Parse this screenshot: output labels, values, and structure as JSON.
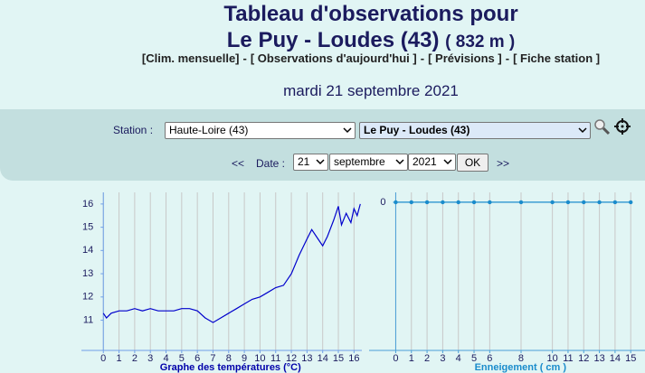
{
  "header": {
    "title": "Tableau d'observations pour",
    "station": "Le Puy - Loudes (43)",
    "altitude": "( 832 m )"
  },
  "nav": {
    "items": [
      "[Clim. mensuelle]",
      "[ Observations d'aujourd'hui ]",
      "[ Prévisions ]",
      "[ Fiche station ]"
    ],
    "separator": "-"
  },
  "date": "mardi 21 septembre 2021",
  "form": {
    "station_label": "Station :",
    "department": "Haute-Loire (43)",
    "station": "Le Puy - Loudes (43)",
    "prev": "<<",
    "date_label": "Date :",
    "day": "21",
    "month": "septembre",
    "year": "2021",
    "ok": "OK",
    "next": ">>"
  },
  "chart_data": [
    {
      "type": "line",
      "x_label": "Graphe des températures (°C)",
      "x": [
        0,
        0.2,
        0.5,
        1,
        1.5,
        2,
        2.5,
        3,
        3.5,
        4,
        4.5,
        5,
        5.5,
        6,
        6.5,
        7,
        7.5,
        8,
        8.5,
        9,
        9.5,
        10,
        10.5,
        11,
        11.5,
        12,
        12.5,
        13,
        13.3,
        13.7,
        14,
        14.3,
        14.7,
        15,
        15.2,
        15.5,
        15.8,
        16,
        16.2,
        16.4
      ],
      "values": [
        11.3,
        11.1,
        11.3,
        11.4,
        11.4,
        11.5,
        11.4,
        11.5,
        11.4,
        11.4,
        11.4,
        11.5,
        11.5,
        11.4,
        11.1,
        10.9,
        11.1,
        11.3,
        11.5,
        11.7,
        11.9,
        12.0,
        12.2,
        12.4,
        12.5,
        13.0,
        13.8,
        14.5,
        14.9,
        14.5,
        14.2,
        14.6,
        15.3,
        15.9,
        15.1,
        15.6,
        15.2,
        15.8,
        15.5,
        16.0
      ],
      "color": "#0000cc",
      "xlim": [
        -1.4,
        16.5
      ],
      "ylim": [
        9.7,
        16.5
      ],
      "xticks": [
        0,
        1,
        2,
        3,
        4,
        5,
        6,
        7,
        8,
        9,
        10,
        11,
        12,
        13,
        14,
        15,
        16
      ],
      "yticks": [
        11,
        12,
        13,
        14,
        15,
        16
      ],
      "grid": "x",
      "markers": false
    },
    {
      "type": "line",
      "x_label": "Enneigement ( cm )",
      "x": [
        0,
        1,
        2,
        3,
        4,
        5,
        6,
        8,
        10,
        11,
        12,
        13,
        14,
        15
      ],
      "values": [
        0,
        0,
        0,
        0,
        0,
        0,
        0,
        0,
        0,
        0,
        0,
        0,
        0,
        0
      ],
      "color": "#1a8ccc",
      "xlim": [
        -1.7,
        16.2
      ],
      "ylim": [
        -15,
        1
      ],
      "xticks": [
        0,
        1,
        2,
        3,
        4,
        5,
        6,
        8,
        10,
        11,
        12,
        13,
        14,
        15
      ],
      "yticks": [
        0
      ],
      "grid": "x",
      "markers": true
    }
  ]
}
